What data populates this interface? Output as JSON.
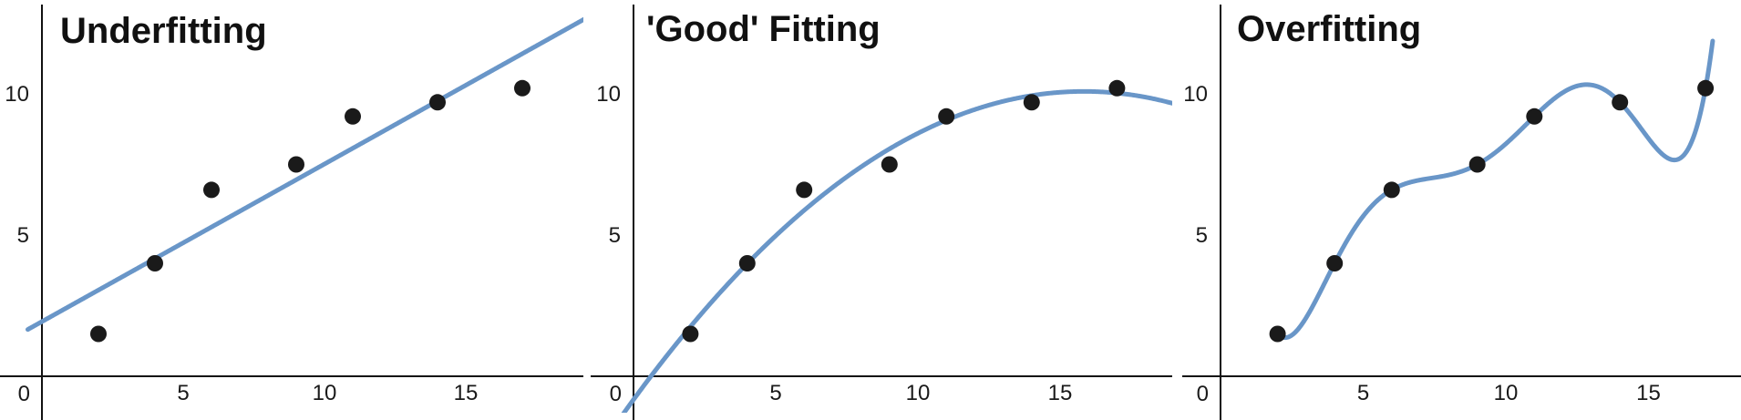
{
  "colors": {
    "curve": "#6996c8",
    "point": "#1a1a1a",
    "axis": "#111111"
  },
  "chart_data": [
    {
      "type": "scatter",
      "title": "Underfitting",
      "fit": "linear",
      "x": [
        2,
        4,
        6,
        9,
        11,
        14,
        17
      ],
      "y": [
        1.5,
        4,
        6.6,
        7.5,
        9.2,
        9.7,
        10.2
      ],
      "xlim": [
        -0.5,
        19.5
      ],
      "ylim": [
        -1.5,
        13
      ],
      "xticks": [
        "5",
        "10",
        "15"
      ],
      "yticks": [
        "5",
        "10"
      ],
      "origin_label": "0",
      "grid": false
    },
    {
      "type": "scatter",
      "title": "'Good' Fitting",
      "fit": "quadratic",
      "x": [
        2,
        4,
        6,
        9,
        11,
        14,
        17
      ],
      "y": [
        1.5,
        4,
        6.6,
        7.5,
        9.2,
        9.7,
        10.2
      ],
      "xlim": [
        -0.5,
        19.5
      ],
      "ylim": [
        -1.5,
        13
      ],
      "xticks": [
        "5",
        "10",
        "15"
      ],
      "yticks": [
        "5",
        "10"
      ],
      "origin_label": "0",
      "grid": false
    },
    {
      "type": "scatter",
      "title": "Overfitting",
      "fit": "interpolating",
      "x": [
        2,
        4,
        6,
        9,
        11,
        14,
        17
      ],
      "y": [
        1.5,
        4,
        6.6,
        7.5,
        9.2,
        9.7,
        10.2
      ],
      "xlim": [
        -0.5,
        19.5
      ],
      "ylim": [
        -1.5,
        13
      ],
      "xticks": [
        "5",
        "10",
        "15"
      ],
      "yticks": [
        "5",
        "10"
      ],
      "origin_label": "0",
      "grid": false
    }
  ]
}
